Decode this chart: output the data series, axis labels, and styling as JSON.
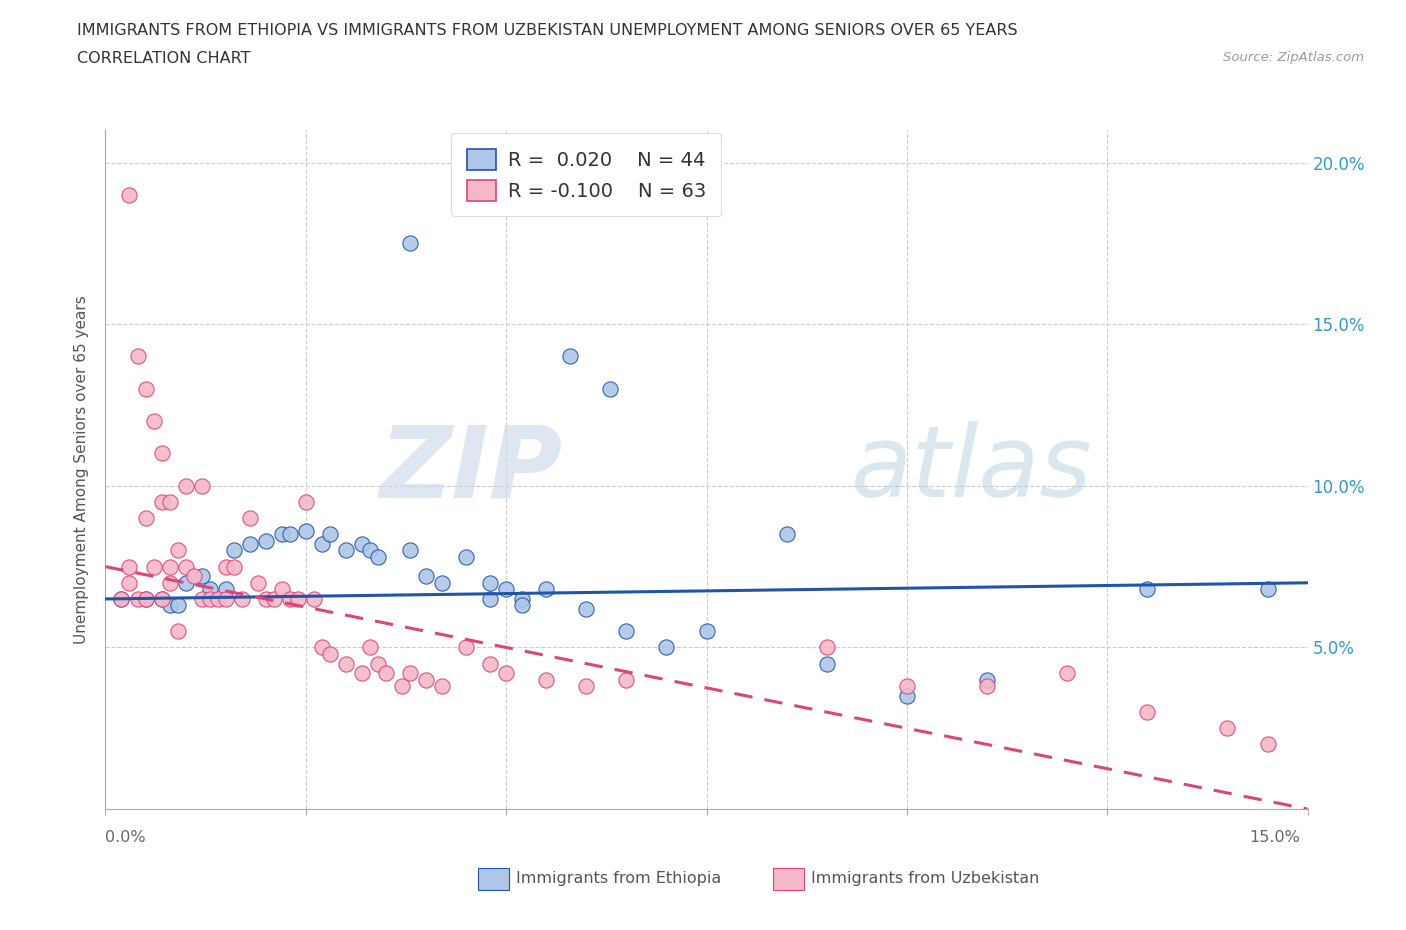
{
  "title_line1": "IMMIGRANTS FROM ETHIOPIA VS IMMIGRANTS FROM UZBEKISTAN UNEMPLOYMENT AMONG SENIORS OVER 65 YEARS",
  "title_line2": "CORRELATION CHART",
  "source_text": "Source: ZipAtlas.com",
  "ylabel": "Unemployment Among Seniors over 65 years",
  "xlim": [
    0.0,
    0.15
  ],
  "ylim": [
    0.0,
    0.21
  ],
  "watermark_zip": "ZIP",
  "watermark_atlas": "atlas",
  "color_ethiopia": "#aec6e8",
  "color_uzbekistan": "#f4b8c8",
  "trendline_ethiopia_color": "#2255aa",
  "trendline_uzbekistan_color": "#dd4477",
  "ethiopia_x": [
    0.038,
    0.002,
    0.005,
    0.007,
    0.008,
    0.009,
    0.01,
    0.012,
    0.013,
    0.015,
    0.016,
    0.018,
    0.02,
    0.022,
    0.023,
    0.025,
    0.027,
    0.028,
    0.03,
    0.032,
    0.033,
    0.034,
    0.038,
    0.04,
    0.042,
    0.045,
    0.048,
    0.05,
    0.052,
    0.055,
    0.06,
    0.065,
    0.07,
    0.075,
    0.085,
    0.09,
    0.1,
    0.11,
    0.13,
    0.145,
    0.048,
    0.052,
    0.058,
    0.063
  ],
  "ethiopia_y": [
    0.175,
    0.065,
    0.065,
    0.065,
    0.063,
    0.063,
    0.07,
    0.072,
    0.068,
    0.068,
    0.08,
    0.082,
    0.083,
    0.085,
    0.085,
    0.086,
    0.082,
    0.085,
    0.08,
    0.082,
    0.08,
    0.078,
    0.08,
    0.072,
    0.07,
    0.078,
    0.07,
    0.068,
    0.065,
    0.068,
    0.062,
    0.055,
    0.05,
    0.055,
    0.085,
    0.045,
    0.035,
    0.04,
    0.068,
    0.068,
    0.065,
    0.063,
    0.14,
    0.13
  ],
  "uzbekistan_x": [
    0.002,
    0.003,
    0.003,
    0.004,
    0.005,
    0.005,
    0.006,
    0.007,
    0.007,
    0.008,
    0.009,
    0.01,
    0.011,
    0.012,
    0.013,
    0.014,
    0.015,
    0.015,
    0.016,
    0.017,
    0.018,
    0.019,
    0.02,
    0.021,
    0.022,
    0.023,
    0.024,
    0.025,
    0.026,
    0.027,
    0.028,
    0.03,
    0.032,
    0.033,
    0.034,
    0.035,
    0.037,
    0.038,
    0.04,
    0.042,
    0.045,
    0.048,
    0.05,
    0.055,
    0.06,
    0.065,
    0.09,
    0.1,
    0.11,
    0.12,
    0.13,
    0.14,
    0.145,
    0.003,
    0.004,
    0.005,
    0.006,
    0.007,
    0.008,
    0.008,
    0.009,
    0.01,
    0.012
  ],
  "uzbekistan_y": [
    0.065,
    0.07,
    0.075,
    0.065,
    0.065,
    0.09,
    0.075,
    0.065,
    0.095,
    0.07,
    0.08,
    0.075,
    0.072,
    0.065,
    0.065,
    0.065,
    0.065,
    0.075,
    0.075,
    0.065,
    0.09,
    0.07,
    0.065,
    0.065,
    0.068,
    0.065,
    0.065,
    0.095,
    0.065,
    0.05,
    0.048,
    0.045,
    0.042,
    0.05,
    0.045,
    0.042,
    0.038,
    0.042,
    0.04,
    0.038,
    0.05,
    0.045,
    0.042,
    0.04,
    0.038,
    0.04,
    0.05,
    0.038,
    0.038,
    0.042,
    0.03,
    0.025,
    0.02,
    0.19,
    0.14,
    0.13,
    0.12,
    0.11,
    0.095,
    0.075,
    0.055,
    0.1,
    0.1
  ]
}
